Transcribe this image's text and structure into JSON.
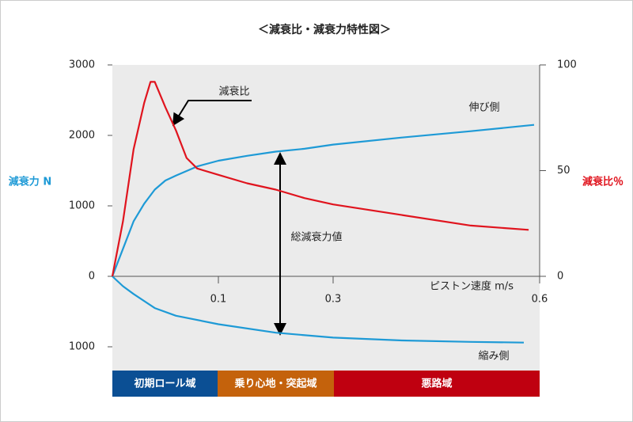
{
  "chart_data": {
    "type": "line",
    "title": "＜減衰比・減衰力特性図＞",
    "x_label": "ピストン速度 m/s",
    "y_label": "減衰力 N",
    "y2_label": "減衰比％",
    "xlim": [
      0,
      0.6
    ],
    "xticks": [
      0.1,
      0.3,
      0.6
    ],
    "ylim": [
      -1000,
      3000
    ],
    "yticks": [
      {
        "value": -1000,
        "label": "1000"
      },
      0,
      1000,
      2000,
      3000
    ],
    "y2lim": [
      0,
      100
    ],
    "y2ticks": [
      0,
      50,
      100
    ],
    "series": [
      {
        "name": "伸び側",
        "color": "#1e9ad6",
        "x": [
          0,
          0.01,
          0.02,
          0.03,
          0.04,
          0.05,
          0.06,
          0.08,
          0.1,
          0.15,
          0.2,
          0.25,
          0.3,
          0.4,
          0.5,
          0.592
        ],
        "values": [
          0,
          390,
          780,
          1030,
          1230,
          1360,
          1430,
          1560,
          1640,
          1710,
          1770,
          1810,
          1870,
          1970,
          2060,
          2150
        ]
      },
      {
        "name": "縮み側",
        "color": "#1e9ad6",
        "x": [
          0,
          0.01,
          0.02,
          0.04,
          0.06,
          0.1,
          0.2,
          0.3,
          0.4,
          0.5,
          0.577
        ],
        "values": [
          0,
          -140,
          -250,
          -450,
          -560,
          -680,
          -800,
          -870,
          -910,
          -930,
          -940
        ]
      },
      {
        "name": "減衰比",
        "color": "#e0141e",
        "axis": "y2",
        "x": [
          0,
          0.01,
          0.02,
          0.03,
          0.036,
          0.04,
          0.05,
          0.06,
          0.07,
          0.08,
          0.1,
          0.15,
          0.2,
          0.25,
          0.3,
          0.4,
          0.5,
          0.584
        ],
        "values": [
          0,
          26,
          60,
          82,
          92,
          92,
          80,
          69,
          56,
          51,
          48,
          44,
          41,
          37,
          34,
          29,
          24,
          22
        ]
      }
    ],
    "annotations": [
      "総減衰力値"
    ],
    "regions": [
      {
        "label": "初期ロール域",
        "color": "#0b4f94"
      },
      {
        "label": "乗り心地・突起域",
        "color": "#c4620c"
      },
      {
        "label": "悪路域",
        "color": "#bf0010"
      }
    ]
  }
}
